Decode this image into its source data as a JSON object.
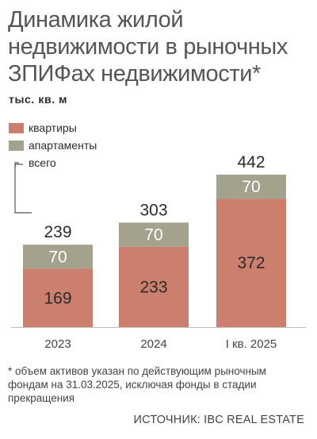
{
  "title": "Динамика жилой недвижимости в рыночных ЗПИФах недвижимости*",
  "unit": "тыс. кв. м",
  "footnote": "* объем активов указан по действующим рыночным фондам на 31.03.2025, исключая фонды в стадии прекращения",
  "source": "ИСТОЧНИК: IBC REAL ESTATE",
  "colors": {
    "apartments_flats": "#cc7f6d",
    "apartments_serviced": "#a4a18d",
    "axis": "#bfbfbf",
    "total_line": "#555555"
  },
  "legend": [
    {
      "label": "квартиры",
      "color": "#cc7f6d"
    },
    {
      "label": "апартаменты",
      "color": "#a4a18d"
    },
    {
      "label": "всего",
      "type": "line"
    }
  ],
  "chart_data": {
    "type": "bar",
    "stacked": true,
    "categories": [
      "2023",
      "2024",
      "I кв. 2025"
    ],
    "series": [
      {
        "name": "квартиры",
        "values": [
          169,
          233,
          372
        ],
        "color": "#cc7f6d"
      },
      {
        "name": "апартаменты",
        "values": [
          70,
          70,
          70
        ],
        "color": "#a4a18d"
      }
    ],
    "totals": [
      239,
      303,
      442
    ],
    "totals_name": "всего",
    "ylabel": "тыс. кв. м",
    "ylim": [
      0,
      442
    ],
    "grid": false,
    "legend_position": "top-left"
  }
}
